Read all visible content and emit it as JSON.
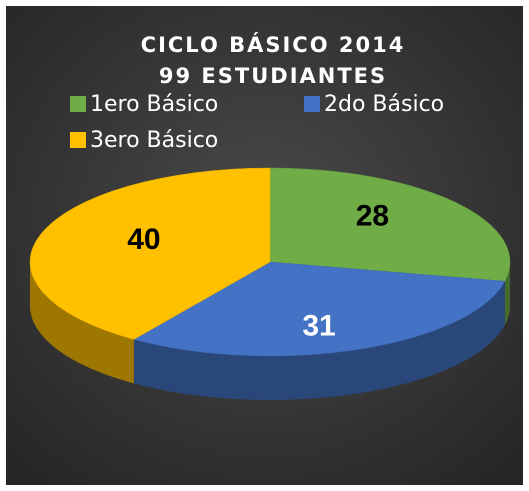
{
  "chart_data": {
    "type": "pie",
    "title": "CICLO BÁSICO 2014",
    "subtitle": "99 ESTUDIANTES",
    "categories": [
      "1ero Básico",
      "2do Básico",
      "3ero Básico"
    ],
    "values": [
      28,
      31,
      40
    ],
    "colors": [
      "#70ad47",
      "#4472c4",
      "#ffc000"
    ],
    "legend": "top"
  }
}
